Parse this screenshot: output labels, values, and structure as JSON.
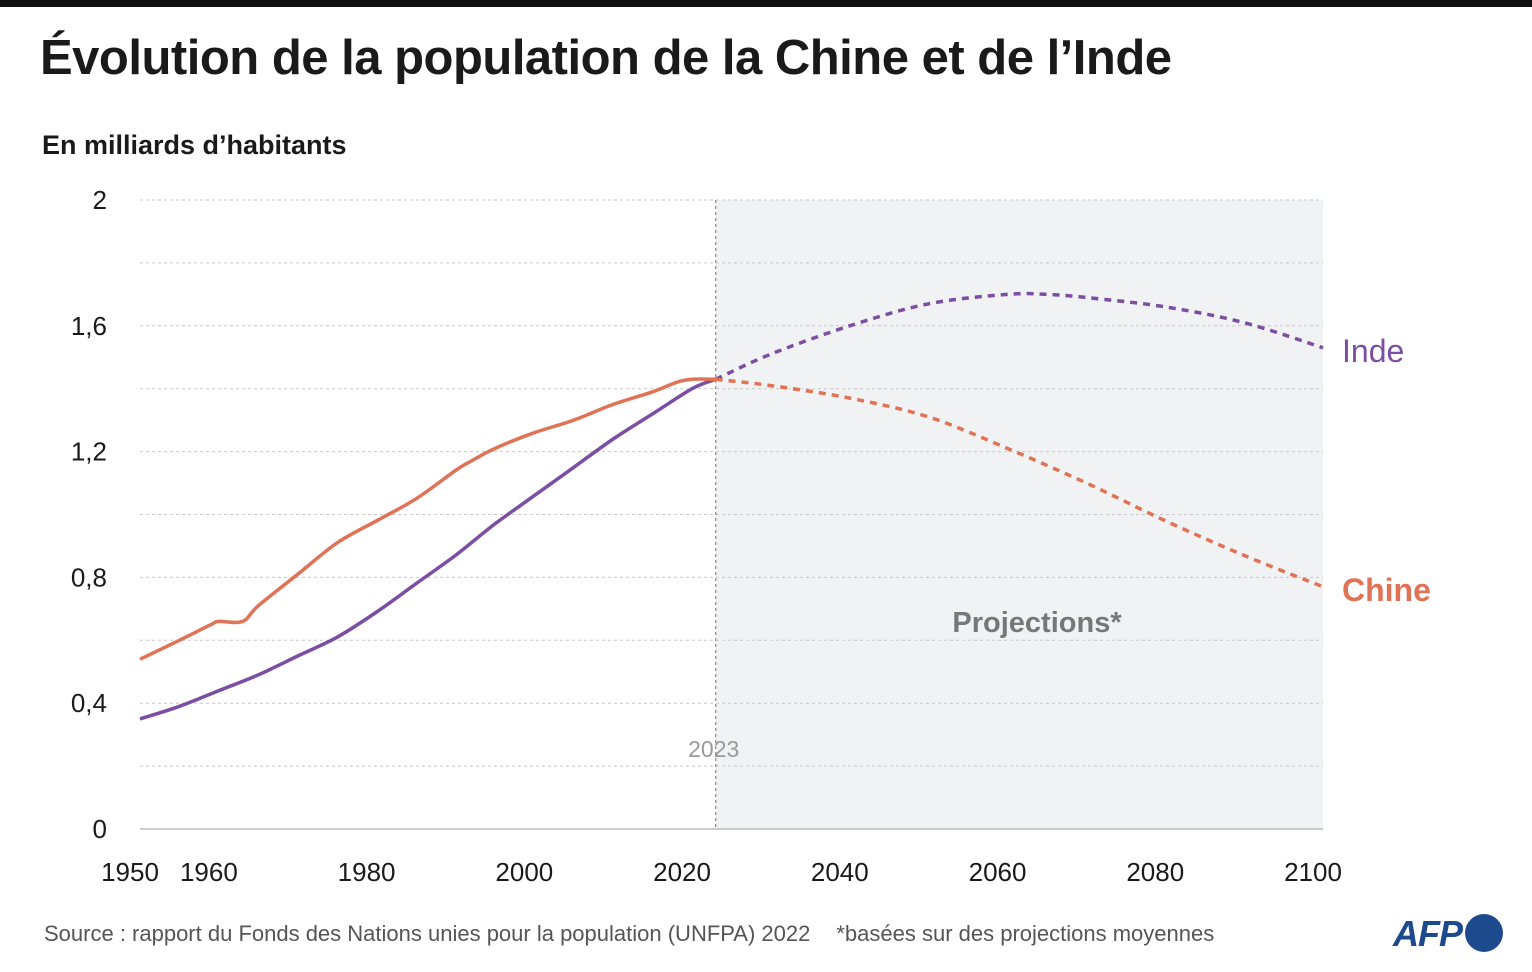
{
  "title": "Évolution de la population de la Chine et de l’Inde",
  "subtitle": "En milliards d’habitants",
  "source": "Source : rapport du Fonds des Nations unies pour la population (UNFPA) 2022",
  "note": "*basées sur des projections moyennes",
  "logo_text": "AFP",
  "colors": {
    "inde": "#7b4ea3",
    "chine": "#e07256",
    "projection_bg": "#f1f2f4",
    "grid": "#c8c8c8"
  },
  "chart_data": {
    "type": "line",
    "title": "Évolution de la population de la Chine et de l’Inde",
    "ylabel": "En milliards d’habitants",
    "xlim": [
      1950,
      2100
    ],
    "ylim": [
      0,
      2
    ],
    "x_ticks": [
      "1950",
      "1960",
      "1980",
      "2000",
      "2020",
      "2040",
      "2060",
      "2080",
      "2100"
    ],
    "y_ticks": [
      "0",
      "0,4",
      "0,8",
      "1,2",
      "1,6",
      "2"
    ],
    "y_tick_values": [
      0,
      0.4,
      0.8,
      1.2,
      1.6,
      2
    ],
    "projection_start": 2023,
    "projection_marker_label": "2023",
    "projection_label": "Projections*",
    "grid": true,
    "series": [
      {
        "name": "Inde",
        "color": "#7b4ea3",
        "historical": {
          "x": [
            1950,
            1955,
            1960,
            1965,
            1970,
            1975,
            1980,
            1985,
            1990,
            1995,
            2000,
            2005,
            2010,
            2015,
            2020,
            2023
          ],
          "y": [
            0.35,
            0.39,
            0.44,
            0.49,
            0.55,
            0.61,
            0.69,
            0.78,
            0.87,
            0.97,
            1.06,
            1.15,
            1.24,
            1.32,
            1.4,
            1.43
          ]
        },
        "projection": {
          "x": [
            2023,
            2030,
            2040,
            2050,
            2060,
            2065,
            2070,
            2080,
            2090,
            2100
          ],
          "y": [
            1.43,
            1.51,
            1.6,
            1.67,
            1.7,
            1.7,
            1.69,
            1.66,
            1.61,
            1.53
          ]
        }
      },
      {
        "name": "Chine",
        "color": "#e07256",
        "historical": {
          "x": [
            1950,
            1955,
            1959,
            1960,
            1963,
            1965,
            1970,
            1975,
            1980,
            1985,
            1990,
            1992,
            1995,
            2000,
            2005,
            2010,
            2015,
            2018,
            2020,
            2023
          ],
          "y": [
            0.54,
            0.6,
            0.65,
            0.66,
            0.66,
            0.71,
            0.81,
            0.91,
            0.98,
            1.05,
            1.14,
            1.17,
            1.21,
            1.26,
            1.3,
            1.35,
            1.39,
            1.42,
            1.43,
            1.43
          ]
        },
        "projection": {
          "x": [
            2023,
            2030,
            2040,
            2050,
            2060,
            2070,
            2080,
            2090,
            2100
          ],
          "y": [
            1.43,
            1.41,
            1.37,
            1.31,
            1.21,
            1.1,
            0.98,
            0.87,
            0.77
          ]
        }
      }
    ]
  }
}
